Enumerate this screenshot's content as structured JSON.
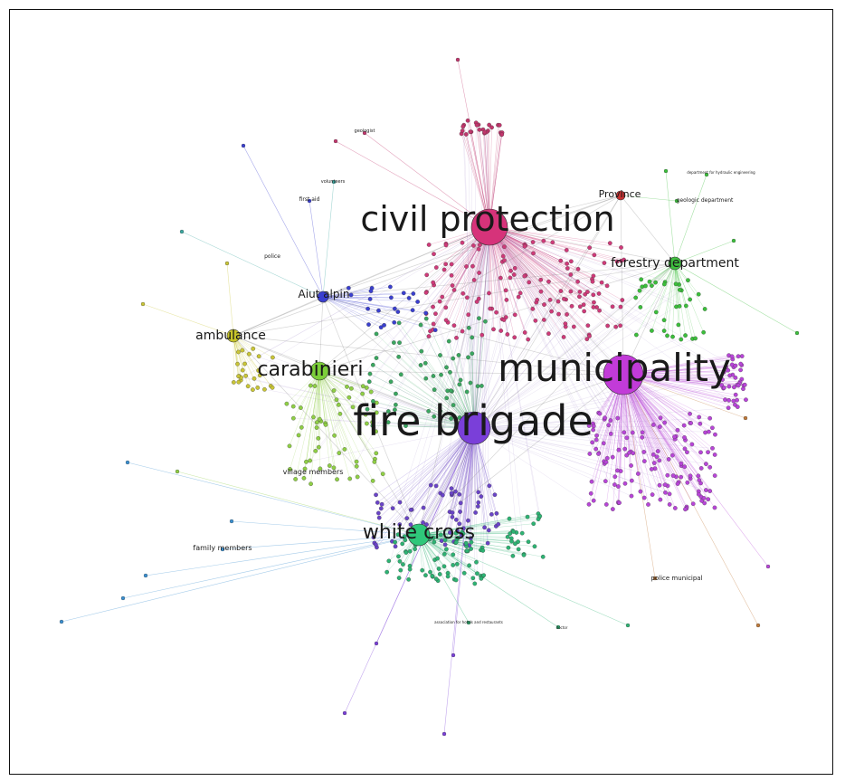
{
  "network": {
    "hubs": [
      {
        "id": "civil_protection",
        "label": "civil protection",
        "color": "#d6337a",
        "degree": 100
      },
      {
        "id": "municipality",
        "label": "municipality",
        "color": "#c23bd8",
        "degree": 95
      },
      {
        "id": "fire_brigade",
        "label": "fire brigade",
        "color": "#7a3fd9",
        "degree": 100
      },
      {
        "id": "white_cross",
        "label": "white cross",
        "color": "#2fc77a",
        "degree": 70
      },
      {
        "id": "carabinieri",
        "label": "carabinieri",
        "color": "#7ccf3a",
        "degree": 55
      },
      {
        "id": "forestry_department",
        "label": "forestry department",
        "color": "#3fbf3f",
        "degree": 40
      },
      {
        "id": "ambulance",
        "label": "ambulance",
        "color": "#c8c52a",
        "degree": 35
      },
      {
        "id": "aiut_alpin",
        "label": "Aiut alpin",
        "color": "#3a3fd0",
        "degree": 30
      },
      {
        "id": "province",
        "label": "Province",
        "color": "#c83232",
        "degree": 20
      }
    ],
    "minor_labels": [
      "geologic department",
      "village members",
      "family members",
      "police municipal",
      "first aid",
      "police",
      "volunteers",
      "geologist",
      "department for hydraulic engineering",
      "association for hotels and restaurants",
      "doctor"
    ]
  }
}
